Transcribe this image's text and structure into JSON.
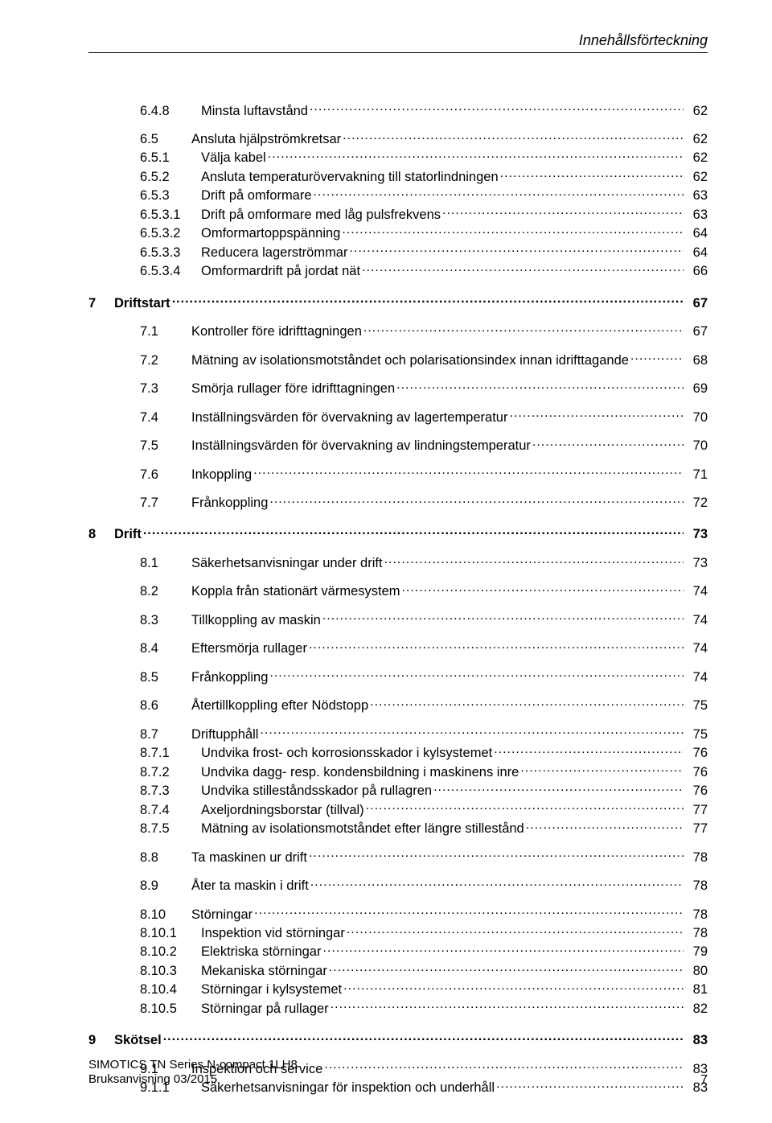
{
  "header": {
    "title": "Innehållsförteckning"
  },
  "toc": {
    "entries": [
      {
        "num": "6.4.8",
        "title": "Minsta luftavstånd",
        "page": "62",
        "level": 2,
        "bold": false,
        "gap": "none"
      },
      {
        "num": "6.5",
        "title": "Ansluta hjälpströmkretsar",
        "page": "62",
        "level": 1,
        "bold": false,
        "gap": "small"
      },
      {
        "num": "6.5.1",
        "title": "Välja kabel",
        "page": "62",
        "level": 2,
        "bold": false,
        "gap": "none"
      },
      {
        "num": "6.5.2",
        "title": "Ansluta temperaturövervakning till statorlindningen",
        "page": "62",
        "level": 2,
        "bold": false,
        "gap": "none"
      },
      {
        "num": "6.5.3",
        "title": "Drift på omformare",
        "page": "63",
        "level": 2,
        "bold": false,
        "gap": "none"
      },
      {
        "num": "6.5.3.1",
        "title": "Drift på omformare med låg pulsfrekvens",
        "page": "63",
        "level": 2,
        "bold": false,
        "gap": "none"
      },
      {
        "num": "6.5.3.2",
        "title": "Omformartoppspänning",
        "page": "64",
        "level": 2,
        "bold": false,
        "gap": "none"
      },
      {
        "num": "6.5.3.3",
        "title": "Reducera lagerströmmar",
        "page": "64",
        "level": 2,
        "bold": false,
        "gap": "none"
      },
      {
        "num": "6.5.3.4",
        "title": "Omformardrift på jordat nät",
        "page": "66",
        "level": 2,
        "bold": false,
        "gap": "none"
      },
      {
        "num": "7",
        "title": "Driftstart",
        "page": "67",
        "level": 0,
        "bold": true,
        "gap": "med"
      },
      {
        "num": "7.1",
        "title": "Kontroller före idrifttagningen",
        "page": "67",
        "level": 1,
        "bold": false,
        "gap": "small"
      },
      {
        "num": "7.2",
        "title": "Mätning av isolationsmotståndet och polarisationsindex innan idrifttagande",
        "page": "68",
        "level": 1,
        "bold": false,
        "gap": "small"
      },
      {
        "num": "7.3",
        "title": "Smörja rullager före idrifttagningen",
        "page": "69",
        "level": 1,
        "bold": false,
        "gap": "small"
      },
      {
        "num": "7.4",
        "title": "Inställningsvärden för övervakning av lagertemperatur",
        "page": "70",
        "level": 1,
        "bold": false,
        "gap": "small"
      },
      {
        "num": "7.5",
        "title": "Inställningsvärden för övervakning av lindningstemperatur",
        "page": "70",
        "level": 1,
        "bold": false,
        "gap": "small"
      },
      {
        "num": "7.6",
        "title": "Inkoppling",
        "page": "71",
        "level": 1,
        "bold": false,
        "gap": "small"
      },
      {
        "num": "7.7",
        "title": "Frånkoppling",
        "page": "72",
        "level": 1,
        "bold": false,
        "gap": "small"
      },
      {
        "num": "8",
        "title": "Drift",
        "page": "73",
        "level": 0,
        "bold": true,
        "gap": "med"
      },
      {
        "num": "8.1",
        "title": "Säkerhetsanvisningar under drift",
        "page": "73",
        "level": 1,
        "bold": false,
        "gap": "small"
      },
      {
        "num": "8.2",
        "title": "Koppla från stationärt värmesystem",
        "page": "74",
        "level": 1,
        "bold": false,
        "gap": "small"
      },
      {
        "num": "8.3",
        "title": "Tillkoppling av maskin",
        "page": "74",
        "level": 1,
        "bold": false,
        "gap": "small"
      },
      {
        "num": "8.4",
        "title": "Eftersmörja rullager",
        "page": "74",
        "level": 1,
        "bold": false,
        "gap": "small"
      },
      {
        "num": "8.5",
        "title": "Frånkoppling",
        "page": "74",
        "level": 1,
        "bold": false,
        "gap": "small"
      },
      {
        "num": "8.6",
        "title": "Återtillkoppling efter Nödstopp",
        "page": "75",
        "level": 1,
        "bold": false,
        "gap": "small"
      },
      {
        "num": "8.7",
        "title": "Driftupphåll",
        "page": "75",
        "level": 1,
        "bold": false,
        "gap": "small"
      },
      {
        "num": "8.7.1",
        "title": "Undvika frost- och korrosionsskador i kylsystemet",
        "page": "76",
        "level": 2,
        "bold": false,
        "gap": "none"
      },
      {
        "num": "8.7.2",
        "title": "Undvika dagg- resp. kondensbildning i maskinens inre",
        "page": "76",
        "level": 2,
        "bold": false,
        "gap": "none"
      },
      {
        "num": "8.7.3",
        "title": "Undvika stilleståndsskador på rullagren",
        "page": "76",
        "level": 2,
        "bold": false,
        "gap": "none"
      },
      {
        "num": "8.7.4",
        "title": "Axeljordningsborstar (tillval)",
        "page": "77",
        "level": 2,
        "bold": false,
        "gap": "none"
      },
      {
        "num": "8.7.5",
        "title": "Mätning av isolationsmotståndet efter längre stillestånd",
        "page": "77",
        "level": 2,
        "bold": false,
        "gap": "none"
      },
      {
        "num": "8.8",
        "title": "Ta maskinen ur drift",
        "page": "78",
        "level": 1,
        "bold": false,
        "gap": "small"
      },
      {
        "num": "8.9",
        "title": "Åter ta maskin i drift",
        "page": "78",
        "level": 1,
        "bold": false,
        "gap": "small"
      },
      {
        "num": "8.10",
        "title": "Störningar",
        "page": "78",
        "level": 1,
        "bold": false,
        "gap": "small"
      },
      {
        "num": "8.10.1",
        "title": "Inspektion vid störningar",
        "page": "78",
        "level": 2,
        "bold": false,
        "gap": "none"
      },
      {
        "num": "8.10.2",
        "title": "Elektriska störningar",
        "page": "79",
        "level": 2,
        "bold": false,
        "gap": "none"
      },
      {
        "num": "8.10.3",
        "title": "Mekaniska störningar",
        "page": "80",
        "level": 2,
        "bold": false,
        "gap": "none"
      },
      {
        "num": "8.10.4",
        "title": "Störningar i kylsystemet",
        "page": "81",
        "level": 2,
        "bold": false,
        "gap": "none"
      },
      {
        "num": "8.10.5",
        "title": "Störningar på rullager",
        "page": "82",
        "level": 2,
        "bold": false,
        "gap": "none"
      },
      {
        "num": "9",
        "title": "Skötsel",
        "page": "83",
        "level": 0,
        "bold": true,
        "gap": "med"
      },
      {
        "num": "9.1",
        "title": "Inspektion och service",
        "page": "83",
        "level": 1,
        "bold": false,
        "gap": "small"
      },
      {
        "num": "9.1.1",
        "title": "Säkerhetsanvisningar för inspektion och underhåll",
        "page": "83",
        "level": 2,
        "bold": false,
        "gap": "none"
      }
    ]
  },
  "footer": {
    "line1": "SIMOTICS TN Series N-compact  1LH8",
    "line2": "Bruksanvisning 03/2015",
    "page_number": "7"
  }
}
